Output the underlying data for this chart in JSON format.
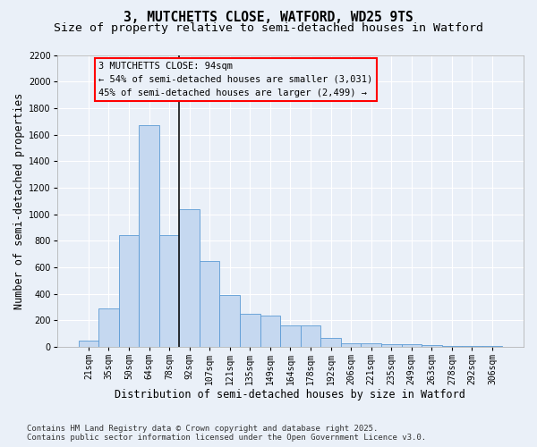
{
  "title_line1": "3, MUTCHETTS CLOSE, WATFORD, WD25 9TS",
  "title_line2": "Size of property relative to semi-detached houses in Watford",
  "xlabel": "Distribution of semi-detached houses by size in Watford",
  "ylabel": "Number of semi-detached properties",
  "categories": [
    "21sqm",
    "35sqm",
    "50sqm",
    "64sqm",
    "78sqm",
    "92sqm",
    "107sqm",
    "121sqm",
    "135sqm",
    "149sqm",
    "164sqm",
    "178sqm",
    "192sqm",
    "206sqm",
    "221sqm",
    "235sqm",
    "249sqm",
    "263sqm",
    "278sqm",
    "292sqm",
    "306sqm"
  ],
  "values": [
    50,
    290,
    840,
    1670,
    840,
    1040,
    650,
    390,
    250,
    240,
    160,
    160,
    70,
    30,
    25,
    22,
    18,
    12,
    8,
    5,
    5
  ],
  "bar_color": "#c5d8f0",
  "bar_edge_color": "#5b9bd5",
  "annotation_line1": "3 MUTCHETTS CLOSE: 94sqm",
  "annotation_line2": "← 54% of semi-detached houses are smaller (3,031)",
  "annotation_line3": "45% of semi-detached houses are larger (2,499) →",
  "vline_x": 5.0,
  "ylim_max": 2200,
  "yticks": [
    0,
    200,
    400,
    600,
    800,
    1000,
    1200,
    1400,
    1600,
    1800,
    2000,
    2200
  ],
  "background_color": "#eaf0f8",
  "grid_color": "#ffffff",
  "footer_line1": "Contains HM Land Registry data © Crown copyright and database right 2025.",
  "footer_line2": "Contains public sector information licensed under the Open Government Licence v3.0.",
  "title_fontsize": 10.5,
  "subtitle_fontsize": 9.5,
  "axis_label_fontsize": 8.5,
  "tick_fontsize": 7,
  "annotation_fontsize": 7.5,
  "footer_fontsize": 6.5
}
